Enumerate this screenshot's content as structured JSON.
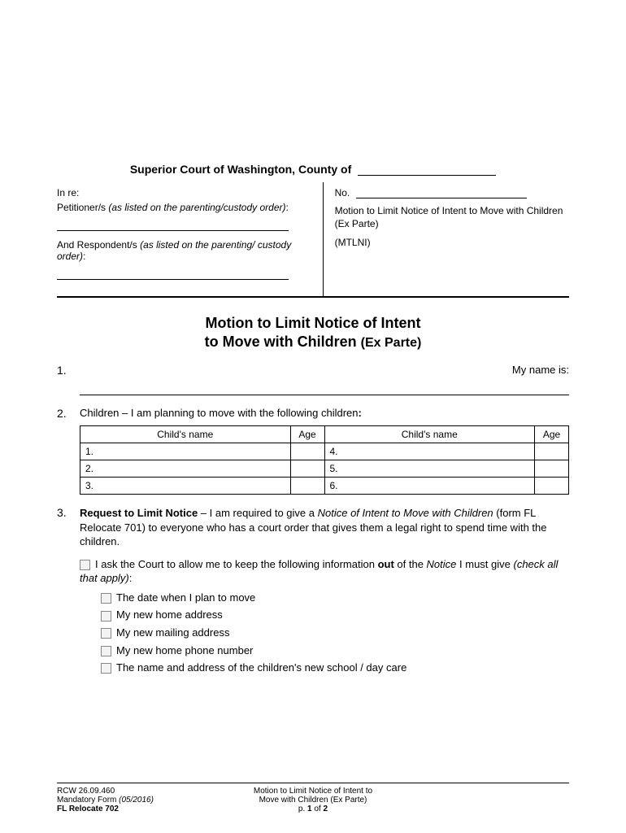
{
  "court": {
    "header_prefix": "Superior Court of Washington, County of"
  },
  "caption": {
    "inre": "In re:",
    "petitioner_label": "Petitioner/s",
    "petitioner_note": "(as listed on the parenting/custody order)",
    "respondent_label": "And Respondent/s",
    "respondent_note": "(as listed on the parenting/ custody order)",
    "no_label": "No.",
    "motion_title_1": "Motion to Limit Notice of Intent to Move with Children (Ex Parte)",
    "motion_code": "(MTLNI)"
  },
  "title": {
    "line1": "Motion to Limit Notice of Intent",
    "line2": "to Move with Children",
    "paren": "(Ex Parte)"
  },
  "sections": {
    "s1": {
      "num": "1.",
      "myname": "My name is:"
    },
    "s2": {
      "num": "2.",
      "intro_a": "Children – I am planning to move with the following children",
      "colon": ":",
      "headers": {
        "name": "Child's name",
        "age": "Age"
      },
      "rows_left": [
        "1.",
        "2.",
        "3."
      ],
      "rows_right": [
        "4.",
        "5.",
        "6."
      ]
    },
    "s3": {
      "num": "3.",
      "label": "Request to Limit Notice",
      "text_a": " – I am required to give a ",
      "italic_a": "Notice of Intent to Move with Children",
      "text_b": " (form FL Relocate 701) to everyone who has a court order that gives them a legal right to spend time with the children.",
      "ask_a": "I ask the Court to allow me to keep the following information ",
      "ask_bold": "out",
      "ask_b": " of the ",
      "ask_italic": "Notice",
      "ask_c": " I must give ",
      "ask_paren": "(check all that apply)",
      "ask_colon": ":",
      "opts": [
        "The date when I plan to move",
        "My new home address",
        "My new mailing address",
        "My new home phone number",
        "The name and address of the children's new school / day care"
      ]
    }
  },
  "footer": {
    "rcw": "RCW 26.09.460",
    "mandatory": "Mandatory Form ",
    "mandatory_date": "(05/2016)",
    "form_no": "FL Relocate 702",
    "center1": "Motion to Limit Notice of Intent to",
    "center2": "Move with Children (Ex Parte)",
    "page_a": "p. ",
    "page_b": "1",
    "page_c": " of ",
    "page_d": "2"
  }
}
